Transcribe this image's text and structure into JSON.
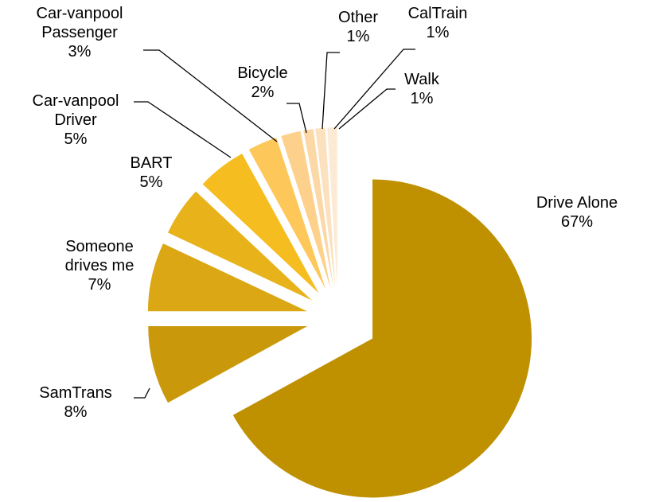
{
  "chart_data": {
    "type": "pie",
    "categories": [
      "Drive Alone",
      "SamTrans",
      "Someone drives me",
      "BART",
      "Car-vanpool Driver",
      "Car-vanpool Passenger",
      "Bicycle",
      "Other",
      "CalTrain",
      "Walk"
    ],
    "values": [
      67,
      8,
      7,
      5,
      5,
      3,
      2,
      1,
      1,
      1
    ],
    "value_labels": [
      "67%",
      "8%",
      "7%",
      "5%",
      "5%",
      "3%",
      "2%",
      "1%",
      "1%",
      "1%"
    ],
    "colors": [
      "#bf9000",
      "#c9990b",
      "#dba714",
      "#e8b21a",
      "#f5bd1f",
      "#fec75a",
      "#fdd18c",
      "#fbd8a6",
      "#fce1bf",
      "#fdead5"
    ]
  }
}
